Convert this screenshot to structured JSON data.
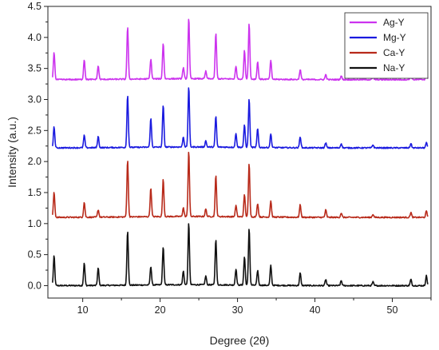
{
  "chart_data": {
    "type": "line",
    "title": "",
    "xlabel": "Degree (2θ)",
    "ylabel": "Intensity (a.u.)",
    "xlim": [
      5.5,
      55
    ],
    "ylim": [
      -0.2,
      4.5
    ],
    "x_ticks": [
      10,
      20,
      30,
      40,
      50
    ],
    "x_tick_labels": [
      "10",
      "20",
      "30",
      "40",
      "50"
    ],
    "y_ticks": [
      0.0,
      0.5,
      1.0,
      1.5,
      2.0,
      2.5,
      3.0,
      3.5,
      4.0,
      4.5
    ],
    "y_tick_labels": [
      "0.0",
      "0.5",
      "1.0",
      "1.5",
      "2.0",
      "2.5",
      "3.0",
      "3.5",
      "4.0",
      "4.5"
    ],
    "grid": false,
    "legend_position": "top-right",
    "series": [
      {
        "name": "Ag-Y",
        "color": "#cc33ee",
        "baseline": 3.32,
        "peaks": [
          [
            6.3,
            0.44
          ],
          [
            10.2,
            0.32
          ],
          [
            12.0,
            0.22
          ],
          [
            15.8,
            0.84
          ],
          [
            18.8,
            0.32
          ],
          [
            20.4,
            0.58
          ],
          [
            23.0,
            0.18
          ],
          [
            23.7,
            0.98
          ],
          [
            25.9,
            0.12
          ],
          [
            27.2,
            0.74
          ],
          [
            29.8,
            0.2
          ],
          [
            30.9,
            0.46
          ],
          [
            31.5,
            0.9
          ],
          [
            32.6,
            0.28
          ],
          [
            34.3,
            0.3
          ],
          [
            38.1,
            0.16
          ],
          [
            41.4,
            0.08
          ],
          [
            43.4,
            0.06
          ],
          [
            47.5,
            0.05
          ],
          [
            52.4,
            0.08
          ],
          [
            54.4,
            0.1
          ]
        ]
      },
      {
        "name": "Mg-Y",
        "color": "#1a1adf",
        "baseline": 2.22,
        "peaks": [
          [
            6.3,
            0.34
          ],
          [
            10.2,
            0.2
          ],
          [
            12.0,
            0.18
          ],
          [
            15.8,
            0.84
          ],
          [
            18.8,
            0.46
          ],
          [
            20.4,
            0.68
          ],
          [
            23.0,
            0.16
          ],
          [
            23.7,
            0.98
          ],
          [
            25.9,
            0.1
          ],
          [
            27.2,
            0.5
          ],
          [
            29.8,
            0.22
          ],
          [
            30.9,
            0.36
          ],
          [
            31.5,
            0.78
          ],
          [
            32.6,
            0.3
          ],
          [
            34.3,
            0.22
          ],
          [
            38.1,
            0.18
          ],
          [
            41.4,
            0.08
          ],
          [
            43.4,
            0.07
          ],
          [
            47.5,
            0.05
          ],
          [
            52.4,
            0.07
          ],
          [
            54.4,
            0.08
          ]
        ]
      },
      {
        "name": "Ca-Y",
        "color": "#b82a1a",
        "baseline": 1.1,
        "peaks": [
          [
            6.3,
            0.4
          ],
          [
            10.2,
            0.24
          ],
          [
            12.0,
            0.12
          ],
          [
            15.8,
            0.92
          ],
          [
            18.8,
            0.46
          ],
          [
            20.4,
            0.6
          ],
          [
            23.0,
            0.14
          ],
          [
            23.7,
            1.06
          ],
          [
            25.9,
            0.12
          ],
          [
            27.2,
            0.66
          ],
          [
            29.8,
            0.18
          ],
          [
            30.9,
            0.36
          ],
          [
            31.5,
            0.86
          ],
          [
            32.6,
            0.22
          ],
          [
            34.3,
            0.26
          ],
          [
            38.1,
            0.2
          ],
          [
            41.4,
            0.12
          ],
          [
            43.4,
            0.07
          ],
          [
            47.5,
            0.05
          ],
          [
            52.4,
            0.08
          ],
          [
            54.4,
            0.1
          ]
        ]
      },
      {
        "name": "Na-Y",
        "color": "#111111",
        "baseline": 0.0,
        "peaks": [
          [
            6.3,
            0.48
          ],
          [
            10.2,
            0.36
          ],
          [
            12.0,
            0.28
          ],
          [
            15.8,
            0.88
          ],
          [
            18.8,
            0.3
          ],
          [
            20.4,
            0.62
          ],
          [
            23.0,
            0.22
          ],
          [
            23.7,
            1.0
          ],
          [
            25.9,
            0.14
          ],
          [
            27.2,
            0.74
          ],
          [
            29.8,
            0.26
          ],
          [
            30.9,
            0.46
          ],
          [
            31.5,
            0.92
          ],
          [
            32.6,
            0.24
          ],
          [
            34.3,
            0.32
          ],
          [
            38.1,
            0.2
          ],
          [
            41.4,
            0.1
          ],
          [
            43.4,
            0.08
          ],
          [
            47.5,
            0.06
          ],
          [
            52.4,
            0.1
          ],
          [
            54.4,
            0.16
          ]
        ]
      }
    ]
  }
}
